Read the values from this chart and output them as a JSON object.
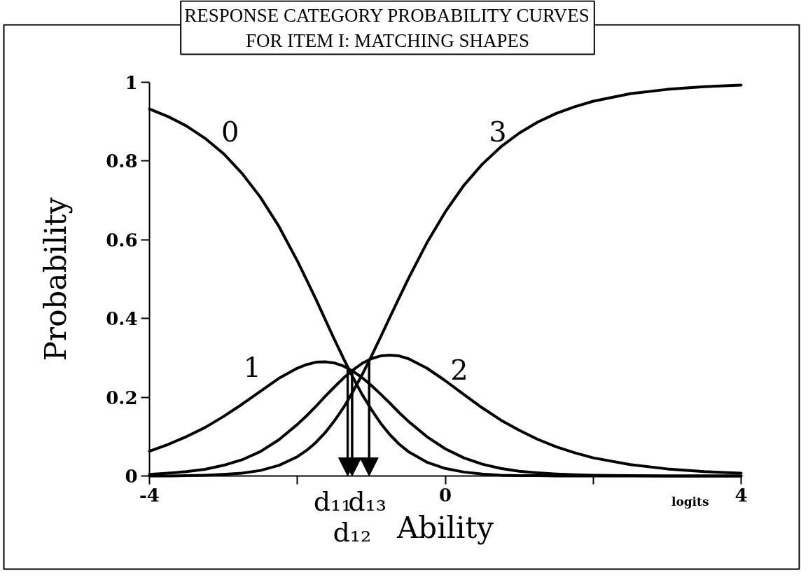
{
  "chart_data": {
    "type": "line",
    "title": "RESPONSE CATEGORY PROBABILITY CURVES FOR ITEM I: MATCHING SHAPES",
    "xlabel": "Ability",
    "ylabel": "Probability",
    "x": [
      -4,
      -3.75,
      -3.5,
      -3.25,
      -3,
      -2.75,
      -2.5,
      -2.25,
      -2,
      -1.875,
      -1.75,
      -1.625,
      -1.5,
      -1.375,
      -1.25,
      -1.125,
      -1,
      -0.875,
      -0.75,
      -0.625,
      -0.5,
      -0.25,
      0,
      0.25,
      0.5,
      0.75,
      1,
      1.25,
      1.5,
      1.75,
      2,
      2.5,
      3,
      3.5,
      4
    ],
    "series": [
      {
        "name": "0",
        "color": "#000000",
        "values": [
          0.932,
          0.913,
          0.889,
          0.858,
          0.819,
          0.769,
          0.708,
          0.634,
          0.546,
          0.498,
          0.449,
          0.398,
          0.347,
          0.298,
          0.251,
          0.207,
          0.169,
          0.134,
          0.105,
          0.081,
          0.062,
          0.035,
          0.019,
          0.01,
          0.005,
          0.002,
          0.001,
          0.001,
          0,
          0,
          0,
          0,
          0,
          0,
          0
        ]
      },
      {
        "name": "1",
        "color": "#000000",
        "values": [
          0.063,
          0.08,
          0.1,
          0.123,
          0.151,
          0.182,
          0.215,
          0.248,
          0.274,
          0.283,
          0.289,
          0.29,
          0.287,
          0.279,
          0.266,
          0.25,
          0.23,
          0.208,
          0.185,
          0.161,
          0.139,
          0.1,
          0.069,
          0.046,
          0.03,
          0.019,
          0.012,
          0.008,
          0.005,
          0.003,
          0.002,
          0.001,
          0,
          0,
          0
        ]
      },
      {
        "name": "2",
        "color": "#000000",
        "values": [
          0.004,
          0.007,
          0.011,
          0.017,
          0.027,
          0.041,
          0.062,
          0.092,
          0.131,
          0.153,
          0.177,
          0.202,
          0.226,
          0.249,
          0.269,
          0.286,
          0.298,
          0.305,
          0.307,
          0.305,
          0.298,
          0.274,
          0.242,
          0.207,
          0.173,
          0.142,
          0.116,
          0.093,
          0.074,
          0.059,
          0.046,
          0.029,
          0.018,
          0.011,
          0.007
        ]
      },
      {
        "name": "3",
        "color": "#000000",
        "values": [
          0,
          0,
          0.001,
          0.002,
          0.004,
          0.007,
          0.014,
          0.027,
          0.049,
          0.065,
          0.085,
          0.11,
          0.14,
          0.174,
          0.214,
          0.257,
          0.304,
          0.353,
          0.403,
          0.452,
          0.501,
          0.592,
          0.671,
          0.738,
          0.792,
          0.836,
          0.871,
          0.899,
          0.921,
          0.938,
          0.952,
          0.971,
          0.982,
          0.989,
          0.993
        ]
      }
    ],
    "xlim": [
      -4,
      4
    ],
    "xticks": [
      -4,
      {
        "value": -2,
        "label": null
      },
      0,
      {
        "value": 2,
        "label": null
      },
      4
    ],
    "ylim": [
      0,
      1
    ],
    "yticks": [
      0,
      0.2,
      0.4,
      0.6,
      0.8,
      1
    ],
    "line_style": "solid",
    "ref_lines": [
      {
        "axis": "x",
        "value": -1.32,
        "label": "d₁₁"
      },
      {
        "axis": "x",
        "value": -1.26,
        "label": "d₁₂"
      },
      {
        "axis": "x",
        "value": -1.03,
        "label": "d₁₃"
      }
    ],
    "annotations": [
      "logits"
    ]
  }
}
